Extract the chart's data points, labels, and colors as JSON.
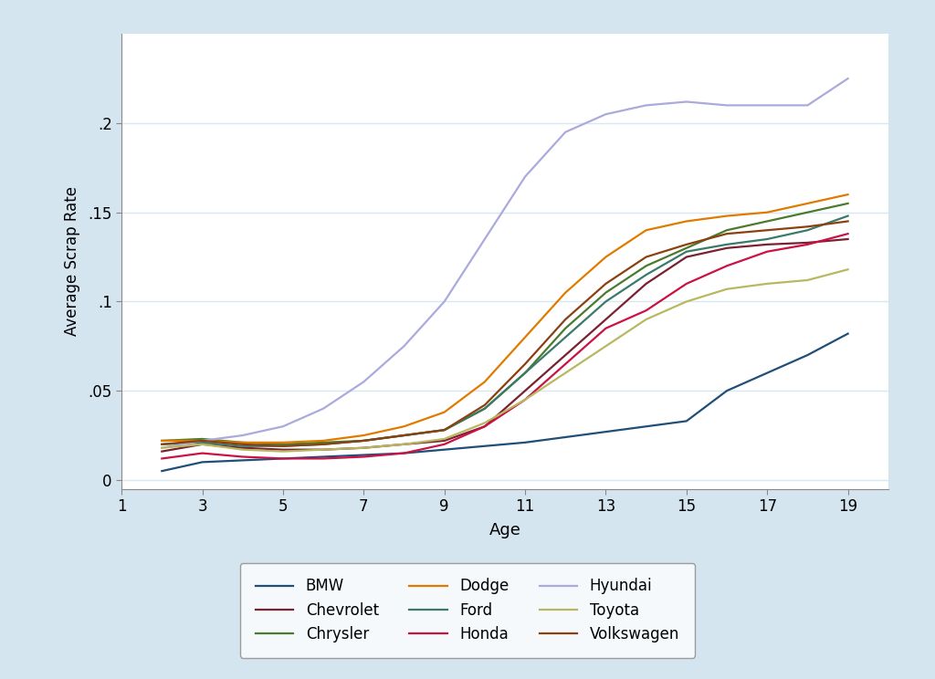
{
  "ages": [
    2,
    3,
    4,
    5,
    6,
    7,
    8,
    9,
    10,
    11,
    12,
    13,
    14,
    15,
    16,
    17,
    18,
    19
  ],
  "series": {
    "BMW": {
      "color": "#1f4e79",
      "values": [
        0.005,
        0.01,
        0.011,
        0.012,
        0.013,
        0.014,
        0.015,
        0.017,
        0.019,
        0.021,
        0.024,
        0.027,
        0.03,
        0.033,
        0.05,
        0.06,
        0.07,
        0.082
      ]
    },
    "Chevrolet": {
      "color": "#7b2030",
      "values": [
        0.016,
        0.02,
        0.018,
        0.017,
        0.017,
        0.018,
        0.02,
        0.022,
        0.03,
        0.05,
        0.07,
        0.09,
        0.11,
        0.125,
        0.13,
        0.132,
        0.133,
        0.135
      ]
    },
    "Chrysler": {
      "color": "#4a7a2b",
      "values": [
        0.022,
        0.023,
        0.021,
        0.02,
        0.021,
        0.022,
        0.025,
        0.028,
        0.04,
        0.06,
        0.085,
        0.105,
        0.12,
        0.13,
        0.14,
        0.145,
        0.15,
        0.155
      ]
    },
    "Dodge": {
      "color": "#e07b00",
      "values": [
        0.022,
        0.022,
        0.021,
        0.021,
        0.022,
        0.025,
        0.03,
        0.038,
        0.055,
        0.08,
        0.105,
        0.125,
        0.14,
        0.145,
        0.148,
        0.15,
        0.155,
        0.16
      ]
    },
    "Ford": {
      "color": "#3a7a6a",
      "values": [
        0.02,
        0.021,
        0.019,
        0.019,
        0.02,
        0.022,
        0.025,
        0.028,
        0.04,
        0.06,
        0.08,
        0.1,
        0.115,
        0.128,
        0.132,
        0.135,
        0.14,
        0.148
      ]
    },
    "Honda": {
      "color": "#cc1144",
      "values": [
        0.012,
        0.015,
        0.013,
        0.012,
        0.012,
        0.013,
        0.015,
        0.02,
        0.03,
        0.045,
        0.065,
        0.085,
        0.095,
        0.11,
        0.12,
        0.128,
        0.132,
        0.138
      ]
    },
    "Hyundai": {
      "color": "#aaaadd",
      "values": [
        0.018,
        0.022,
        0.025,
        0.03,
        0.04,
        0.055,
        0.075,
        0.1,
        0.135,
        0.17,
        0.195,
        0.205,
        0.21,
        0.212,
        0.21,
        0.21,
        0.21,
        0.225
      ]
    },
    "Toyota": {
      "color": "#b8b860",
      "values": [
        0.018,
        0.02,
        0.017,
        0.016,
        0.017,
        0.018,
        0.02,
        0.023,
        0.032,
        0.045,
        0.06,
        0.075,
        0.09,
        0.1,
        0.107,
        0.11,
        0.112,
        0.118
      ]
    },
    "Volkswagen": {
      "color": "#8b4010",
      "values": [
        0.02,
        0.022,
        0.02,
        0.019,
        0.02,
        0.022,
        0.025,
        0.028,
        0.042,
        0.065,
        0.09,
        0.11,
        0.125,
        0.132,
        0.138,
        0.14,
        0.142,
        0.145
      ]
    }
  },
  "legend_order": [
    "BMW",
    "Chevrolet",
    "Chrysler",
    "Dodge",
    "Ford",
    "Honda",
    "Hyundai",
    "Toyota",
    "Volkswagen"
  ],
  "xlabel": "Age",
  "ylabel": "Average Scrap Rate",
  "xlim": [
    1,
    20
  ],
  "ylim": [
    -0.005,
    0.25
  ],
  "xticks": [
    1,
    3,
    5,
    7,
    9,
    11,
    13,
    15,
    17,
    19
  ],
  "yticks": [
    0.0,
    0.05,
    0.1,
    0.15,
    0.2
  ],
  "ytick_labels": [
    "0",
    ".05",
    ".1",
    ".15",
    ".2"
  ],
  "figure_bg_color": "#d5e5f0",
  "plot_bg_color": "#ffffff",
  "grid_color": "#d8e8f0",
  "linewidth": 1.6
}
